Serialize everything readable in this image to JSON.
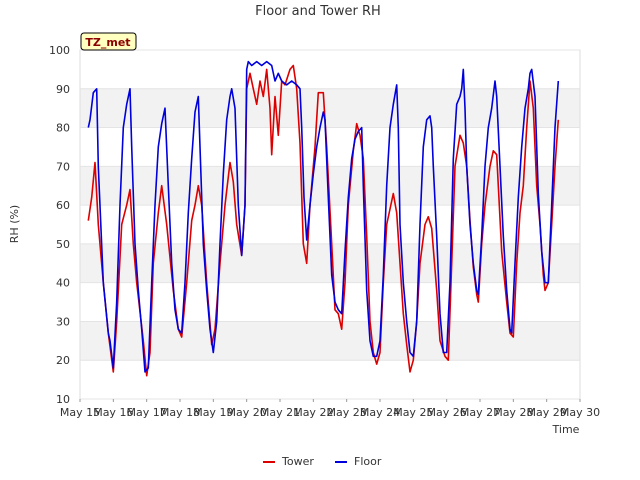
{
  "chart_data": {
    "type": "line",
    "title": "Floor and Tower RH",
    "xlabel": "Time",
    "ylabel": "RH (%)",
    "ylim": [
      10,
      100
    ],
    "yticks": [
      10,
      20,
      30,
      40,
      50,
      60,
      70,
      80,
      90,
      100
    ],
    "xlim": [
      15,
      30
    ],
    "xticks": [
      {
        "v": 15,
        "label": "May 15"
      },
      {
        "v": 16,
        "label": "May 16"
      },
      {
        "v": 17,
        "label": "May 17"
      },
      {
        "v": 18,
        "label": "May 18"
      },
      {
        "v": 19,
        "label": "May 19"
      },
      {
        "v": 20,
        "label": "May 20"
      },
      {
        "v": 21,
        "label": "May 21"
      },
      {
        "v": 22,
        "label": "May 22"
      },
      {
        "v": 23,
        "label": "May 23"
      },
      {
        "v": 24,
        "label": "May 24"
      },
      {
        "v": 25,
        "label": "May 25"
      },
      {
        "v": 26,
        "label": "May 26"
      },
      {
        "v": 27,
        "label": "May 27"
      },
      {
        "v": 28,
        "label": "May 28"
      },
      {
        "v": 29,
        "label": "May 29"
      },
      {
        "v": 30,
        "label": "May 30"
      }
    ],
    "grid": "horizontal bands",
    "legend_position": "bottom-center",
    "site_label": "TZ_met",
    "series": [
      {
        "name": "Tower",
        "color": "#dd0000",
        "points": [
          [
            15.25,
            56
          ],
          [
            15.35,
            62
          ],
          [
            15.45,
            71
          ],
          [
            15.55,
            55
          ],
          [
            15.7,
            40
          ],
          [
            15.85,
            27
          ],
          [
            16.0,
            17
          ],
          [
            16.1,
            30
          ],
          [
            16.25,
            55
          ],
          [
            16.4,
            60
          ],
          [
            16.5,
            64
          ],
          [
            16.6,
            50
          ],
          [
            16.7,
            40
          ],
          [
            16.9,
            25
          ],
          [
            17.0,
            16
          ],
          [
            17.1,
            22
          ],
          [
            17.2,
            45
          ],
          [
            17.35,
            58
          ],
          [
            17.45,
            65
          ],
          [
            17.6,
            55
          ],
          [
            17.8,
            38
          ],
          [
            17.95,
            28
          ],
          [
            18.05,
            26
          ],
          [
            18.2,
            40
          ],
          [
            18.35,
            56
          ],
          [
            18.45,
            60
          ],
          [
            18.55,
            65
          ],
          [
            18.65,
            60
          ],
          [
            18.8,
            40
          ],
          [
            18.95,
            24
          ],
          [
            19.05,
            28
          ],
          [
            19.2,
            45
          ],
          [
            19.35,
            60
          ],
          [
            19.5,
            71
          ],
          [
            19.6,
            66
          ],
          [
            19.7,
            55
          ],
          [
            19.85,
            47
          ],
          [
            19.95,
            60
          ],
          [
            20.0,
            90
          ],
          [
            20.1,
            94
          ],
          [
            20.2,
            90
          ],
          [
            20.3,
            86
          ],
          [
            20.4,
            92
          ],
          [
            20.5,
            88
          ],
          [
            20.6,
            95
          ],
          [
            20.7,
            85
          ],
          [
            20.75,
            73
          ],
          [
            20.85,
            88
          ],
          [
            20.95,
            78
          ],
          [
            21.05,
            92
          ],
          [
            21.15,
            91
          ],
          [
            21.3,
            95
          ],
          [
            21.4,
            96
          ],
          [
            21.5,
            90
          ],
          [
            21.6,
            76
          ],
          [
            21.7,
            50
          ],
          [
            21.8,
            45
          ],
          [
            21.9,
            60
          ],
          [
            22.05,
            75
          ],
          [
            22.15,
            89
          ],
          [
            22.3,
            89
          ],
          [
            22.4,
            75
          ],
          [
            22.55,
            50
          ],
          [
            22.65,
            33
          ],
          [
            22.75,
            32
          ],
          [
            22.85,
            28
          ],
          [
            22.95,
            40
          ],
          [
            23.05,
            60
          ],
          [
            23.2,
            74
          ],
          [
            23.3,
            81
          ],
          [
            23.4,
            78
          ],
          [
            23.5,
            72
          ],
          [
            23.6,
            52
          ],
          [
            23.7,
            30
          ],
          [
            23.8,
            22
          ],
          [
            23.9,
            19
          ],
          [
            24.0,
            22
          ],
          [
            24.1,
            40
          ],
          [
            24.2,
            55
          ],
          [
            24.3,
            59
          ],
          [
            24.4,
            63
          ],
          [
            24.5,
            58
          ],
          [
            24.6,
            45
          ],
          [
            24.7,
            32
          ],
          [
            24.8,
            24
          ],
          [
            24.9,
            17
          ],
          [
            25.0,
            20
          ],
          [
            25.1,
            30
          ],
          [
            25.2,
            45
          ],
          [
            25.35,
            55
          ],
          [
            25.45,
            57
          ],
          [
            25.55,
            54
          ],
          [
            25.7,
            38
          ],
          [
            25.8,
            25
          ],
          [
            25.95,
            21
          ],
          [
            26.05,
            20
          ],
          [
            26.15,
            45
          ],
          [
            26.25,
            70
          ],
          [
            26.4,
            78
          ],
          [
            26.5,
            76
          ],
          [
            26.6,
            70
          ],
          [
            26.7,
            56
          ],
          [
            26.8,
            44
          ],
          [
            26.9,
            37
          ],
          [
            26.95,
            35
          ],
          [
            27.05,
            50
          ],
          [
            27.15,
            60
          ],
          [
            27.3,
            70
          ],
          [
            27.4,
            74
          ],
          [
            27.5,
            73
          ],
          [
            27.55,
            65
          ],
          [
            27.65,
            48
          ],
          [
            27.8,
            35
          ],
          [
            27.9,
            27
          ],
          [
            28.0,
            26
          ],
          [
            28.1,
            45
          ],
          [
            28.2,
            58
          ],
          [
            28.3,
            65
          ],
          [
            28.4,
            80
          ],
          [
            28.5,
            92
          ],
          [
            28.6,
            85
          ],
          [
            28.7,
            65
          ],
          [
            28.8,
            55
          ],
          [
            28.9,
            42
          ],
          [
            28.95,
            38
          ],
          [
            29.05,
            40
          ],
          [
            29.15,
            55
          ],
          [
            29.25,
            70
          ],
          [
            29.35,
            82
          ]
        ]
      },
      {
        "name": "Floor",
        "color": "#0000dd",
        "points": [
          [
            15.25,
            80
          ],
          [
            15.3,
            82
          ],
          [
            15.4,
            89
          ],
          [
            15.5,
            90
          ],
          [
            15.55,
            70
          ],
          [
            15.7,
            40
          ],
          [
            15.85,
            27
          ],
          [
            15.9,
            25
          ],
          [
            16.0,
            18
          ],
          [
            16.1,
            35
          ],
          [
            16.2,
            60
          ],
          [
            16.3,
            80
          ],
          [
            16.4,
            86
          ],
          [
            16.5,
            90
          ],
          [
            16.55,
            75
          ],
          [
            16.65,
            50
          ],
          [
            16.75,
            38
          ],
          [
            16.85,
            28
          ],
          [
            16.95,
            17
          ],
          [
            17.05,
            18
          ],
          [
            17.15,
            40
          ],
          [
            17.25,
            60
          ],
          [
            17.35,
            75
          ],
          [
            17.45,
            81
          ],
          [
            17.55,
            85
          ],
          [
            17.65,
            65
          ],
          [
            17.75,
            45
          ],
          [
            17.85,
            33
          ],
          [
            17.95,
            28
          ],
          [
            18.05,
            27
          ],
          [
            18.15,
            40
          ],
          [
            18.25,
            58
          ],
          [
            18.35,
            72
          ],
          [
            18.45,
            84
          ],
          [
            18.55,
            88
          ],
          [
            18.6,
            75
          ],
          [
            18.7,
            50
          ],
          [
            18.8,
            38
          ],
          [
            18.9,
            28
          ],
          [
            19.0,
            22
          ],
          [
            19.1,
            30
          ],
          [
            19.2,
            50
          ],
          [
            19.3,
            68
          ],
          [
            19.4,
            82
          ],
          [
            19.5,
            88
          ],
          [
            19.55,
            90
          ],
          [
            19.65,
            85
          ],
          [
            19.75,
            60
          ],
          [
            19.85,
            47
          ],
          [
            19.95,
            60
          ],
          [
            20.0,
            95
          ],
          [
            20.05,
            97
          ],
          [
            20.15,
            96
          ],
          [
            20.3,
            97
          ],
          [
            20.45,
            96
          ],
          [
            20.6,
            97
          ],
          [
            20.75,
            96
          ],
          [
            20.85,
            92
          ],
          [
            20.95,
            94
          ],
          [
            21.05,
            92
          ],
          [
            21.2,
            91
          ],
          [
            21.35,
            92
          ],
          [
            21.5,
            91
          ],
          [
            21.6,
            90
          ],
          [
            21.65,
            80
          ],
          [
            21.72,
            62
          ],
          [
            21.8,
            51
          ],
          [
            21.9,
            60
          ],
          [
            22.0,
            68
          ],
          [
            22.1,
            75
          ],
          [
            22.2,
            80
          ],
          [
            22.3,
            84
          ],
          [
            22.35,
            82
          ],
          [
            22.45,
            62
          ],
          [
            22.55,
            42
          ],
          [
            22.65,
            35
          ],
          [
            22.75,
            33
          ],
          [
            22.85,
            32
          ],
          [
            22.95,
            48
          ],
          [
            23.05,
            62
          ],
          [
            23.15,
            72
          ],
          [
            23.25,
            77
          ],
          [
            23.35,
            79
          ],
          [
            23.45,
            80
          ],
          [
            23.5,
            65
          ],
          [
            23.6,
            38
          ],
          [
            23.7,
            25
          ],
          [
            23.8,
            21
          ],
          [
            23.9,
            21
          ],
          [
            24.0,
            25
          ],
          [
            24.1,
            42
          ],
          [
            24.2,
            65
          ],
          [
            24.3,
            80
          ],
          [
            24.4,
            86
          ],
          [
            24.5,
            91
          ],
          [
            24.55,
            80
          ],
          [
            24.6,
            55
          ],
          [
            24.7,
            40
          ],
          [
            24.8,
            30
          ],
          [
            24.9,
            22
          ],
          [
            25.0,
            21
          ],
          [
            25.1,
            30
          ],
          [
            25.2,
            55
          ],
          [
            25.3,
            75
          ],
          [
            25.4,
            82
          ],
          [
            25.5,
            83
          ],
          [
            25.55,
            80
          ],
          [
            25.6,
            70
          ],
          [
            25.7,
            52
          ],
          [
            25.8,
            32
          ],
          [
            25.9,
            22
          ],
          [
            26.0,
            22
          ],
          [
            26.1,
            40
          ],
          [
            26.2,
            72
          ],
          [
            26.3,
            86
          ],
          [
            26.4,
            88
          ],
          [
            26.45,
            90
          ],
          [
            26.5,
            95
          ],
          [
            26.55,
            85
          ],
          [
            26.6,
            70
          ],
          [
            26.7,
            55
          ],
          [
            26.8,
            45
          ],
          [
            26.9,
            38
          ],
          [
            26.95,
            37
          ],
          [
            27.05,
            52
          ],
          [
            27.15,
            70
          ],
          [
            27.25,
            80
          ],
          [
            27.35,
            85
          ],
          [
            27.45,
            92
          ],
          [
            27.5,
            88
          ],
          [
            27.6,
            70
          ],
          [
            27.7,
            52
          ],
          [
            27.8,
            38
          ],
          [
            27.9,
            28
          ],
          [
            27.95,
            27
          ],
          [
            28.05,
            45
          ],
          [
            28.15,
            62
          ],
          [
            28.25,
            75
          ],
          [
            28.35,
            85
          ],
          [
            28.45,
            90
          ],
          [
            28.5,
            94
          ],
          [
            28.55,
            95
          ],
          [
            28.65,
            88
          ],
          [
            28.75,
            63
          ],
          [
            28.85,
            48
          ],
          [
            28.95,
            40
          ],
          [
            29.05,
            40
          ],
          [
            29.15,
            60
          ],
          [
            29.25,
            80
          ],
          [
            29.35,
            92
          ]
        ]
      }
    ]
  }
}
